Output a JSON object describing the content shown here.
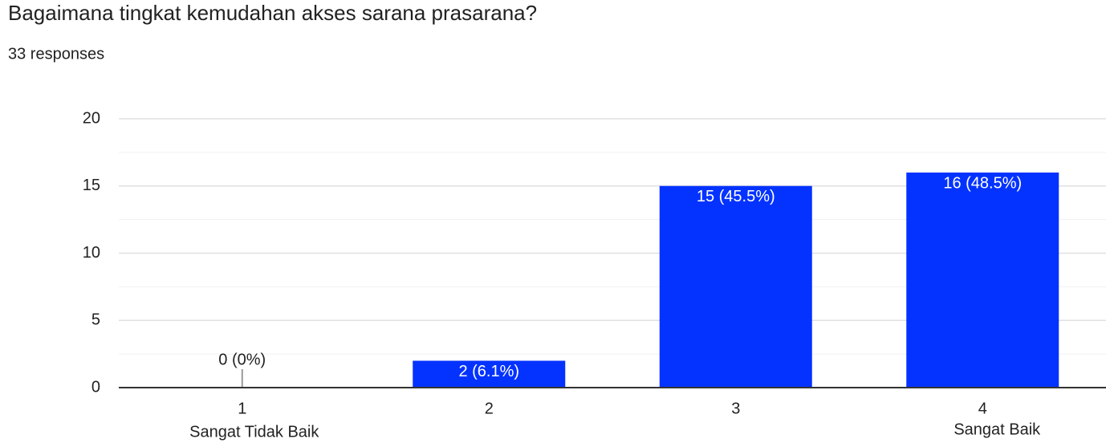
{
  "chart_data": {
    "type": "bar",
    "title": "Bagaimana tingkat kemudahan akses sarana prasarana?",
    "subtitle": "33 responses",
    "categories": [
      "1",
      "2",
      "3",
      "4"
    ],
    "x_start_label": "Sangat Tidak Baik",
    "x_end_label": "Sangat Baik",
    "values": [
      0,
      2,
      15,
      16
    ],
    "value_labels": [
      "0 (0%)",
      "2 (6.1%)",
      "15 (45.5%)",
      "16 (48.5%)"
    ],
    "color": "#0433ff",
    "ylim": [
      0,
      20
    ],
    "yticks": [
      0,
      5,
      10,
      15,
      20
    ],
    "grid": true
  }
}
